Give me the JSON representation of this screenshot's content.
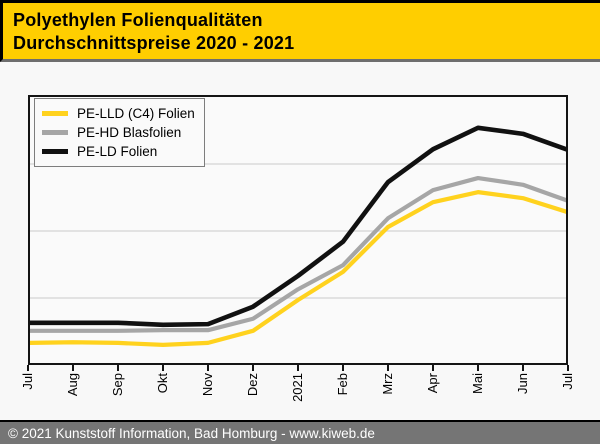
{
  "header": {
    "title_line1": "Polyethylen Folienqualitäten",
    "title_line2": "Durchschnittspreise 2020 - 2021"
  },
  "footer": {
    "text": "© 2021 Kunststoff Information, Bad Homburg - www.kiweb.de"
  },
  "legend": {
    "position": "top-left",
    "items": [
      {
        "label": "PE-LLD (C4) Folien",
        "color": "#ffd21e"
      },
      {
        "label": "PE-HD Blasfolien",
        "color": "#a6a6a6"
      },
      {
        "label": "PE-LD Folien",
        "color": "#111111"
      }
    ]
  },
  "colors": {
    "header_background": "#ffce00",
    "footer_background": "#757575",
    "page_background": "#f8f8f8",
    "plot_background": "#fafafa",
    "gridline": "#d9d9d9",
    "axis_frame": "#141414"
  },
  "chart_data": {
    "type": "line",
    "title": "Polyethylen Folienqualitäten Durchschnittspreise 2020 - 2021",
    "xlabel": "",
    "ylabel": "",
    "x_tick_labels": [
      "Jul",
      "Aug",
      "Sep",
      "Okt",
      "Nov",
      "Dez",
      "2021",
      "Feb",
      "Mrz",
      "Apr",
      "Mai",
      "Jun",
      "Jul"
    ],
    "x_axis_note": "monthly from Jul 2020 to Jul 2021, labels rotated 90deg",
    "y_axis": {
      "tick_labels_visible": false,
      "unit": "gridline-units (no numeric labels shown on chart)",
      "ylim": [
        0,
        4
      ],
      "gridlines_at": [
        1,
        2,
        3
      ]
    },
    "grid": true,
    "legend_position": "top-left",
    "series": [
      {
        "name": "PE-LLD (C4) Folien",
        "color": "#ffd21e",
        "stroke_width": 4.2,
        "values": [
          0.33,
          0.34,
          0.33,
          0.3,
          0.33,
          0.51,
          0.97,
          1.39,
          2.06,
          2.43,
          2.58,
          2.49,
          2.28
        ]
      },
      {
        "name": "PE-HD Blasfolien",
        "color": "#a6a6a6",
        "stroke_width": 4.2,
        "values": [
          0.51,
          0.51,
          0.51,
          0.52,
          0.52,
          0.69,
          1.13,
          1.49,
          2.19,
          2.61,
          2.79,
          2.69,
          2.45
        ]
      },
      {
        "name": "PE-LD Folien",
        "color": "#111111",
        "stroke_width": 4.6,
        "values": [
          0.63,
          0.63,
          0.63,
          0.6,
          0.61,
          0.87,
          1.33,
          1.84,
          2.73,
          3.22,
          3.54,
          3.45,
          3.21
        ]
      }
    ]
  }
}
